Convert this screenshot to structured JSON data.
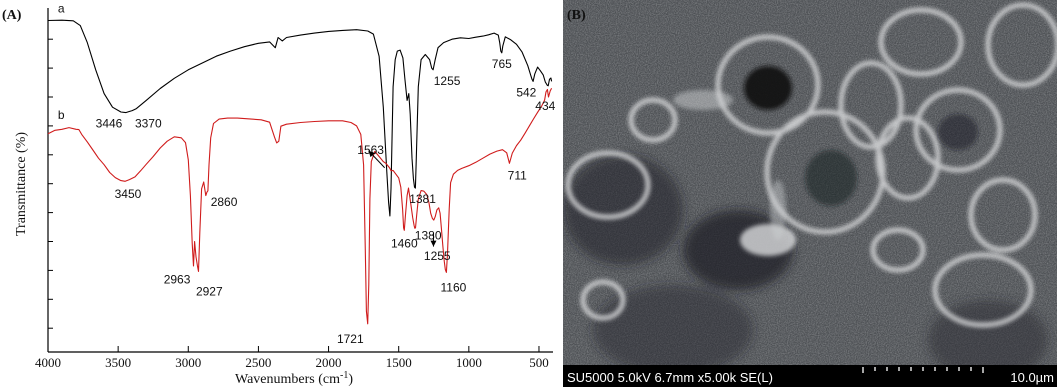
{
  "panels": {
    "a": {
      "label": "(A)"
    },
    "b": {
      "label": "(B)"
    }
  },
  "sem": {
    "info": "SU5000 5.0kV 6.7mm x5.00k SE(L)",
    "scale": "10.0µm"
  },
  "chart_data": {
    "type": "line",
    "xlabel": "Wavenumbers (cm",
    "xlabel_sup": "-1",
    "xlabel_close": ")",
    "ylabel": "Transmittance (%)",
    "xlim": [
      4000,
      400
    ],
    "ylim": [
      0,
      100
    ],
    "xticks": [
      4000,
      3500,
      3000,
      2500,
      2000,
      1500,
      1000,
      500
    ],
    "xtick_labels": [
      "4000",
      "3500",
      "3000",
      "2500",
      "2000",
      "1500",
      "1000",
      "500"
    ],
    "yticks": [
      7,
      15.5,
      24,
      32.5,
      41,
      49.5,
      58,
      66.5,
      75,
      83.5,
      92
    ],
    "series": [
      {
        "name": "a",
        "color": "#000000",
        "points": [
          [
            4000,
            97.5
          ],
          [
            3900,
            97.6
          ],
          [
            3820,
            97.4
          ],
          [
            3770,
            96
          ],
          [
            3720,
            91
          ],
          [
            3660,
            83
          ],
          [
            3600,
            76
          ],
          [
            3540,
            72
          ],
          [
            3480,
            70.6
          ],
          [
            3446,
            70.4
          ],
          [
            3400,
            71
          ],
          [
            3370,
            71.6
          ],
          [
            3300,
            74
          ],
          [
            3200,
            77.5
          ],
          [
            3100,
            80.5
          ],
          [
            3000,
            83
          ],
          [
            2900,
            85
          ],
          [
            2800,
            87
          ],
          [
            2700,
            88.5
          ],
          [
            2600,
            89.8
          ],
          [
            2500,
            90.8
          ],
          [
            2420,
            91.2
          ],
          [
            2380,
            89.5
          ],
          [
            2360,
            92.5
          ],
          [
            2330,
            91.5
          ],
          [
            2300,
            92.5
          ],
          [
            2200,
            93.2
          ],
          [
            2100,
            93.8
          ],
          [
            2000,
            94.3
          ],
          [
            1900,
            94.6
          ],
          [
            1800,
            94.8
          ],
          [
            1720,
            94.4
          ],
          [
            1680,
            93.5
          ],
          [
            1640,
            87
          ],
          [
            1610,
            72
          ],
          [
            1585,
            53
          ],
          [
            1572,
            44
          ],
          [
            1563,
            40
          ],
          [
            1555,
            48
          ],
          [
            1540,
            78
          ],
          [
            1525,
            86
          ],
          [
            1510,
            88.5
          ],
          [
            1490,
            88.8
          ],
          [
            1470,
            86.5
          ],
          [
            1455,
            80
          ],
          [
            1440,
            74
          ],
          [
            1428,
            76
          ],
          [
            1418,
            70
          ],
          [
            1405,
            57
          ],
          [
            1395,
            51
          ],
          [
            1387,
            48.5
          ],
          [
            1381,
            48.2
          ],
          [
            1375,
            56
          ],
          [
            1360,
            78
          ],
          [
            1340,
            86
          ],
          [
            1310,
            87.5
          ],
          [
            1280,
            86
          ],
          [
            1265,
            83.5
          ],
          [
            1255,
            83
          ],
          [
            1240,
            86
          ],
          [
            1220,
            89.5
          ],
          [
            1180,
            91
          ],
          [
            1120,
            92
          ],
          [
            1060,
            92.4
          ],
          [
            1000,
            92.2
          ],
          [
            950,
            92.6
          ],
          [
            900,
            92.9
          ],
          [
            860,
            93.3
          ],
          [
            820,
            93.8
          ],
          [
            790,
            93.2
          ],
          [
            780,
            91
          ],
          [
            772,
            88.5
          ],
          [
            765,
            88
          ],
          [
            758,
            90
          ],
          [
            740,
            92.7
          ],
          [
            700,
            91.8
          ],
          [
            660,
            90.5
          ],
          [
            620,
            88.2
          ],
          [
            580,
            84.2
          ],
          [
            560,
            81.5
          ],
          [
            550,
            80.2
          ],
          [
            542,
            79.6
          ],
          [
            530,
            81.8
          ],
          [
            510,
            83.8
          ],
          [
            490,
            82.7
          ],
          [
            470,
            81.5
          ],
          [
            455,
            79.4
          ],
          [
            440,
            78.4
          ],
          [
            434,
            78.3
          ],
          [
            425,
            80.2
          ],
          [
            415,
            80.6
          ],
          [
            410,
            79.6
          ]
        ]
      },
      {
        "name": "b",
        "color": "#d01c1c",
        "points": [
          [
            4000,
            64.2
          ],
          [
            3950,
            65.2
          ],
          [
            3900,
            65.5
          ],
          [
            3850,
            66.0
          ],
          [
            3800,
            65.5
          ],
          [
            3780,
            65.4
          ],
          [
            3760,
            64.0
          ],
          [
            3720,
            61.8
          ],
          [
            3680,
            59.4
          ],
          [
            3640,
            57.0
          ],
          [
            3600,
            55.1
          ],
          [
            3560,
            52.8
          ],
          [
            3520,
            51.3
          ],
          [
            3480,
            50.4
          ],
          [
            3450,
            50.2
          ],
          [
            3420,
            50.7
          ],
          [
            3380,
            51.5
          ],
          [
            3340,
            53.3
          ],
          [
            3300,
            55.2
          ],
          [
            3250,
            57.5
          ],
          [
            3200,
            60.0
          ],
          [
            3150,
            62.0
          ],
          [
            3100,
            63.3
          ],
          [
            3050,
            63.0
          ],
          [
            3020,
            61.6
          ],
          [
            3000,
            56.5
          ],
          [
            2985,
            46.0
          ],
          [
            2972,
            32.0
          ],
          [
            2963,
            25.3
          ],
          [
            2955,
            32.5
          ],
          [
            2945,
            28.0
          ],
          [
            2935,
            25.4
          ],
          [
            2927,
            23.7
          ],
          [
            2918,
            35.0
          ],
          [
            2905,
            48.0
          ],
          [
            2890,
            50.0
          ],
          [
            2875,
            46.0
          ],
          [
            2867,
            47.0
          ],
          [
            2860,
            47.4
          ],
          [
            2852,
            55.0
          ],
          [
            2840,
            63.0
          ],
          [
            2820,
            67.2
          ],
          [
            2780,
            68.5
          ],
          [
            2720,
            68.8
          ],
          [
            2650,
            68.8
          ],
          [
            2550,
            68.5
          ],
          [
            2480,
            68.3
          ],
          [
            2420,
            67.6
          ],
          [
            2385,
            63.2
          ],
          [
            2370,
            61.5
          ],
          [
            2355,
            62.0
          ],
          [
            2340,
            66.4
          ],
          [
            2300,
            67.0
          ],
          [
            2200,
            67.5
          ],
          [
            2100,
            67.8
          ],
          [
            2000,
            68.0
          ],
          [
            1900,
            68.0
          ],
          [
            1840,
            67.5
          ],
          [
            1800,
            66.5
          ],
          [
            1770,
            64.0
          ],
          [
            1750,
            55.0
          ],
          [
            1738,
            30.0
          ],
          [
            1730,
            12.0
          ],
          [
            1721,
            8.3
          ],
          [
            1713,
            20.0
          ],
          [
            1705,
            45.0
          ],
          [
            1695,
            56.0
          ],
          [
            1670,
            59.0
          ],
          [
            1640,
            57.5
          ],
          [
            1610,
            56.0
          ],
          [
            1590,
            55.4
          ],
          [
            1570,
            54.4
          ],
          [
            1563,
            54.0
          ],
          [
            1555,
            53.3
          ],
          [
            1540,
            53.4
          ],
          [
            1520,
            52.3
          ],
          [
            1500,
            51.2
          ],
          [
            1485,
            48.5
          ],
          [
            1472,
            42.0
          ],
          [
            1465,
            36.5
          ],
          [
            1460,
            35.8
          ],
          [
            1452,
            40.0
          ],
          [
            1440,
            46.0
          ],
          [
            1430,
            48.2
          ],
          [
            1415,
            44.0
          ],
          [
            1400,
            39.5
          ],
          [
            1390,
            37.2
          ],
          [
            1385,
            36.4
          ],
          [
            1380,
            36.5
          ],
          [
            1372,
            40.0
          ],
          [
            1360,
            45.0
          ],
          [
            1340,
            47.5
          ],
          [
            1320,
            47.3
          ],
          [
            1300,
            46.3
          ],
          [
            1285,
            44.0
          ],
          [
            1272,
            40.8
          ],
          [
            1260,
            39.3
          ],
          [
            1250,
            38.8
          ],
          [
            1240,
            39.8
          ],
          [
            1228,
            41.8
          ],
          [
            1215,
            42.4
          ],
          [
            1205,
            40.8
          ],
          [
            1195,
            36.0
          ],
          [
            1185,
            31.0
          ],
          [
            1175,
            26.6
          ],
          [
            1168,
            24.3
          ],
          [
            1160,
            23.4
          ],
          [
            1152,
            29.0
          ],
          [
            1140,
            42.0
          ],
          [
            1130,
            49.8
          ],
          [
            1110,
            52.3
          ],
          [
            1080,
            53.4
          ],
          [
            1050,
            54.0
          ],
          [
            1000,
            54.8
          ],
          [
            950,
            55.8
          ],
          [
            900,
            57.0
          ],
          [
            850,
            58.2
          ],
          [
            800,
            59.1
          ],
          [
            760,
            59.5
          ],
          [
            730,
            58.6
          ],
          [
            715,
            56.2
          ],
          [
            711,
            55.5
          ],
          [
            705,
            56.3
          ],
          [
            690,
            58.5
          ],
          [
            660,
            60.7
          ],
          [
            630,
            62.3
          ],
          [
            600,
            64.3
          ],
          [
            570,
            66.4
          ],
          [
            540,
            68.5
          ],
          [
            510,
            70.5
          ],
          [
            480,
            72.4
          ],
          [
            460,
            74.1
          ],
          [
            450,
            76.5
          ],
          [
            440,
            77.2
          ],
          [
            432,
            75.0
          ],
          [
            420,
            76.8
          ],
          [
            410,
            77.6
          ]
        ]
      }
    ],
    "series_labels": [
      {
        "text": "a",
        "x": 3930,
        "y": 99.8
      },
      {
        "text": "b",
        "x": 3930,
        "y": 68.5
      }
    ],
    "annotations": [
      {
        "text": "3446",
        "x": 3565,
        "y": 66.0
      },
      {
        "text": "3370",
        "x": 3285,
        "y": 66.0
      },
      {
        "text": "1381",
        "x": 1330,
        "y": 43.8
      },
      {
        "text": "1255",
        "x": 1155,
        "y": 78.6
      },
      {
        "text": "765",
        "x": 765,
        "y": 83.6
      },
      {
        "text": "542",
        "x": 590,
        "y": 75.2
      },
      {
        "text": "434",
        "x": 455,
        "y": 71.2
      },
      {
        "text": "1563",
        "x": 1700,
        "y": 58.3
      },
      {
        "text": "3450",
        "x": 3430,
        "y": 45.3
      },
      {
        "text": "2860",
        "x": 2745,
        "y": 42.9
      },
      {
        "text": "2963",
        "x": 3080,
        "y": 20.2
      },
      {
        "text": "2927",
        "x": 2850,
        "y": 16.6
      },
      {
        "text": "1460",
        "x": 1460,
        "y": 30.7
      },
      {
        "text": "1380",
        "x": 1290,
        "y": 33.1
      },
      {
        "text": "1255",
        "x": 1225,
        "y": 27.0
      },
      {
        "text": "1160",
        "x": 1110,
        "y": 17.8
      },
      {
        "text": "711",
        "x": 655,
        "y": 50.7
      },
      {
        "text": "1721",
        "x": 1845,
        "y": 2.7
      }
    ],
    "arrows": [
      {
        "from": [
          1600,
          54.2
        ],
        "to": [
          1715,
          59.2
        ]
      },
      {
        "from": [
          1252,
          35.0
        ],
        "to": [
          1252,
          31.0
        ]
      }
    ]
  }
}
